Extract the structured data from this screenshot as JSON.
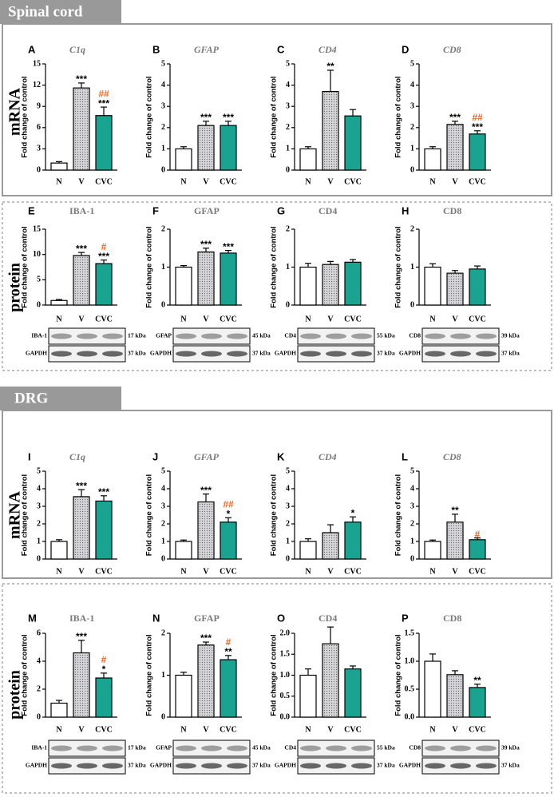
{
  "sections": [
    {
      "title": "Spinal cord",
      "rows": [
        "mRNA",
        "protein"
      ]
    },
    {
      "title": "DRG",
      "rows": [
        "mRNA",
        "protein"
      ]
    }
  ],
  "chart_data": [
    {
      "type": "bar",
      "panel": "A",
      "title": "C1q",
      "title_style": "italic",
      "ylabel": "Fold change of control",
      "categories": [
        "N",
        "V",
        "CVC"
      ],
      "values": [
        1.0,
        11.6,
        7.7
      ],
      "errors": [
        0.2,
        0.7,
        1.2
      ],
      "colors": [
        "#ffffff",
        "#d4d4d8",
        "#1aa391"
      ],
      "dotted_category": "V",
      "ylim": [
        0,
        15
      ],
      "yticks": [
        0,
        3,
        6,
        9,
        12,
        15
      ],
      "annotations": [
        {
          "text": "***",
          "category": "V",
          "color": "#000000"
        },
        {
          "text": "***",
          "category": "CVC",
          "color": "#000000"
        },
        {
          "text": "##",
          "category": "CVC",
          "color": "#f26522"
        }
      ]
    },
    {
      "type": "bar",
      "panel": "B",
      "title": "GFAP",
      "title_style": "italic",
      "ylabel": "Fold change of control",
      "categories": [
        "N",
        "V",
        "CVC"
      ],
      "values": [
        1.0,
        2.1,
        2.1
      ],
      "errors": [
        0.1,
        0.2,
        0.2
      ],
      "colors": [
        "#ffffff",
        "#d4d4d8",
        "#1aa391"
      ],
      "dotted_category": "V",
      "ylim": [
        0,
        5
      ],
      "yticks": [
        0,
        1,
        2,
        3,
        4,
        5
      ],
      "annotations": [
        {
          "text": "***",
          "category": "V",
          "color": "#000000"
        },
        {
          "text": "***",
          "category": "CVC",
          "color": "#000000"
        }
      ]
    },
    {
      "type": "bar",
      "panel": "C",
      "title": "CD4",
      "title_style": "italic",
      "ylabel": "Fold change of control",
      "categories": [
        "N",
        "V",
        "CVC"
      ],
      "values": [
        1.0,
        3.7,
        2.55
      ],
      "errors": [
        0.1,
        1.0,
        0.3
      ],
      "colors": [
        "#ffffff",
        "#d4d4d8",
        "#1aa391"
      ],
      "dotted_category": "V",
      "ylim": [
        0,
        5
      ],
      "yticks": [
        0,
        1,
        2,
        3,
        4,
        5
      ],
      "annotations": [
        {
          "text": "**",
          "category": "V",
          "color": "#000000"
        }
      ]
    },
    {
      "type": "bar",
      "panel": "D",
      "title": "CD8",
      "title_style": "italic",
      "ylabel": "Fold change of control",
      "categories": [
        "N",
        "V",
        "CVC"
      ],
      "values": [
        1.0,
        2.15,
        1.7
      ],
      "errors": [
        0.1,
        0.15,
        0.15
      ],
      "colors": [
        "#ffffff",
        "#d4d4d8",
        "#1aa391"
      ],
      "dotted_category": "V",
      "ylim": [
        0,
        5
      ],
      "yticks": [
        0,
        1,
        2,
        3,
        4,
        5
      ],
      "annotations": [
        {
          "text": "***",
          "category": "V",
          "color": "#000000"
        },
        {
          "text": "***",
          "category": "CVC",
          "color": "#000000"
        },
        {
          "text": "##",
          "category": "CVC",
          "color": "#f26522"
        }
      ]
    },
    {
      "type": "bar",
      "panel": "E",
      "title": "IBA-1",
      "title_style": "normal",
      "ylabel": "Fold change of control",
      "categories": [
        "N",
        "V",
        "CVC"
      ],
      "values": [
        0.9,
        9.8,
        8.2
      ],
      "errors": [
        0.2,
        0.6,
        0.7
      ],
      "colors": [
        "#ffffff",
        "#d4d4d8",
        "#1aa391"
      ],
      "dotted_category": "V",
      "ylim": [
        0,
        15
      ],
      "yticks": [
        0,
        5,
        10,
        15
      ],
      "annotations": [
        {
          "text": "***",
          "category": "V",
          "color": "#000000"
        },
        {
          "text": "***",
          "category": "CVC",
          "color": "#000000"
        },
        {
          "text": "#",
          "category": "CVC",
          "color": "#f26522"
        }
      ],
      "blot": {
        "target": "IBA-1",
        "target_size": "17 kDa",
        "control": "GAPDH",
        "control_size": "37 kDa"
      }
    },
    {
      "type": "bar",
      "panel": "F",
      "title": "GFAP",
      "title_style": "normal",
      "ylabel": "Fold change of control",
      "categories": [
        "N",
        "V",
        "CVC"
      ],
      "values": [
        1.0,
        1.4,
        1.37
      ],
      "errors": [
        0.04,
        0.1,
        0.07
      ],
      "colors": [
        "#ffffff",
        "#d4d4d8",
        "#1aa391"
      ],
      "dotted_category": "V",
      "ylim": [
        0,
        2
      ],
      "yticks": [
        0,
        1,
        2
      ],
      "annotations": [
        {
          "text": "***",
          "category": "V",
          "color": "#000000"
        },
        {
          "text": "***",
          "category": "CVC",
          "color": "#000000"
        }
      ],
      "blot": {
        "target": "GFAP",
        "target_size": "45 kDa",
        "control": "GAPDH",
        "control_size": "37 kDa"
      }
    },
    {
      "type": "bar",
      "panel": "G",
      "title": "CD4",
      "title_style": "normal",
      "ylabel": "Fold change of control",
      "categories": [
        "N",
        "V",
        "CVC"
      ],
      "values": [
        1.0,
        1.07,
        1.13
      ],
      "errors": [
        0.1,
        0.08,
        0.07
      ],
      "colors": [
        "#ffffff",
        "#d4d4d8",
        "#1aa391"
      ],
      "dotted_category": "V",
      "ylim": [
        0,
        2
      ],
      "yticks": [
        0,
        1,
        2
      ],
      "annotations": [],
      "blot": {
        "target": "CD4",
        "target_size": "55 kDa",
        "control": "GAPDH",
        "control_size": "37 kDa"
      }
    },
    {
      "type": "bar",
      "panel": "H",
      "title": "CD8",
      "title_style": "normal",
      "ylabel": "Fold change of control",
      "categories": [
        "N",
        "V",
        "CVC"
      ],
      "values": [
        1.0,
        0.84,
        0.95
      ],
      "errors": [
        0.09,
        0.07,
        0.08
      ],
      "colors": [
        "#ffffff",
        "#d4d4d8",
        "#1aa391"
      ],
      "dotted_category": "V",
      "ylim": [
        0,
        2
      ],
      "yticks": [
        0,
        1,
        2
      ],
      "annotations": [],
      "blot": {
        "target": "CD8",
        "target_size": "39 kDa",
        "control": "GAPDH",
        "control_size": "37 kDa"
      }
    },
    {
      "type": "bar",
      "panel": "I",
      "title": "C1q",
      "title_style": "italic",
      "ylabel": "Fold change of control",
      "categories": [
        "N",
        "V",
        "CVC"
      ],
      "values": [
        1.0,
        3.55,
        3.3
      ],
      "errors": [
        0.1,
        0.4,
        0.3
      ],
      "colors": [
        "#ffffff",
        "#d4d4d8",
        "#1aa391"
      ],
      "dotted_category": "V",
      "ylim": [
        0,
        5
      ],
      "yticks": [
        0,
        1,
        2,
        3,
        4,
        5
      ],
      "annotations": [
        {
          "text": "***",
          "category": "V",
          "color": "#000000"
        },
        {
          "text": "***",
          "category": "CVC",
          "color": "#000000"
        }
      ]
    },
    {
      "type": "bar",
      "panel": "J",
      "title": "GFAP",
      "title_style": "italic",
      "ylabel": "Fold change of control",
      "categories": [
        "N",
        "V",
        "CVC"
      ],
      "values": [
        1.0,
        3.25,
        2.1
      ],
      "errors": [
        0.08,
        0.45,
        0.25
      ],
      "colors": [
        "#ffffff",
        "#d4d4d8",
        "#1aa391"
      ],
      "dotted_category": "V",
      "ylim": [
        0,
        5
      ],
      "yticks": [
        0,
        1,
        2,
        3,
        4,
        5
      ],
      "annotations": [
        {
          "text": "***",
          "category": "V",
          "color": "#000000"
        },
        {
          "text": "*",
          "category": "CVC",
          "color": "#000000"
        },
        {
          "text": "##",
          "category": "CVC",
          "color": "#f26522"
        }
      ]
    },
    {
      "type": "bar",
      "panel": "K",
      "title": "CD4",
      "title_style": "italic",
      "ylabel": "Fold change of control",
      "categories": [
        "N",
        "V",
        "CVC"
      ],
      "values": [
        1.0,
        1.5,
        2.1
      ],
      "errors": [
        0.15,
        0.45,
        0.3
      ],
      "colors": [
        "#ffffff",
        "#d4d4d8",
        "#1aa391"
      ],
      "dotted_category": "V",
      "ylim": [
        0,
        5
      ],
      "yticks": [
        0,
        1,
        2,
        3,
        4,
        5
      ],
      "annotations": [
        {
          "text": "*",
          "category": "CVC",
          "color": "#000000"
        }
      ]
    },
    {
      "type": "bar",
      "panel": "L",
      "title": "CD8",
      "title_style": "italic",
      "ylabel": "Fold change of control",
      "categories": [
        "N",
        "V",
        "CVC"
      ],
      "values": [
        1.0,
        2.1,
        1.1
      ],
      "errors": [
        0.08,
        0.45,
        0.1
      ],
      "colors": [
        "#ffffff",
        "#d4d4d8",
        "#1aa391"
      ],
      "dotted_category": "V",
      "ylim": [
        0,
        5
      ],
      "yticks": [
        0,
        1,
        2,
        3,
        4,
        5
      ],
      "annotations": [
        {
          "text": "**",
          "category": "V",
          "color": "#000000"
        },
        {
          "text": "#",
          "category": "CVC",
          "color": "#f26522"
        }
      ]
    },
    {
      "type": "bar",
      "panel": "M",
      "title": "IBA-1",
      "title_style": "normal",
      "ylabel": "Fold change of control",
      "categories": [
        "N",
        "V",
        "CVC"
      ],
      "values": [
        1.0,
        4.6,
        2.8
      ],
      "errors": [
        0.2,
        0.9,
        0.35
      ],
      "colors": [
        "#ffffff",
        "#d4d4d8",
        "#1aa391"
      ],
      "dotted_category": "V",
      "ylim": [
        0,
        6
      ],
      "yticks": [
        0,
        2,
        4,
        6
      ],
      "annotations": [
        {
          "text": "***",
          "category": "V",
          "color": "#000000"
        },
        {
          "text": "*",
          "category": "CVC",
          "color": "#000000"
        },
        {
          "text": "#",
          "category": "CVC",
          "color": "#f26522"
        }
      ],
      "blot": {
        "target": "IBA-1",
        "target_size": "17 kDa",
        "control": "GAPDH",
        "control_size": "37 kDa"
      }
    },
    {
      "type": "bar",
      "panel": "N",
      "title": "GFAP",
      "title_style": "normal",
      "ylabel": "Fold change of control",
      "categories": [
        "N",
        "V",
        "CVC"
      ],
      "values": [
        1.0,
        1.72,
        1.37
      ],
      "errors": [
        0.07,
        0.07,
        0.1
      ],
      "colors": [
        "#ffffff",
        "#d4d4d8",
        "#1aa391"
      ],
      "dotted_category": "V",
      "ylim": [
        0,
        2
      ],
      "yticks": [
        0,
        1,
        2
      ],
      "annotations": [
        {
          "text": "***",
          "category": "V",
          "color": "#000000"
        },
        {
          "text": "**",
          "category": "CVC",
          "color": "#000000"
        },
        {
          "text": "#",
          "category": "CVC",
          "color": "#f26522"
        }
      ],
      "blot": {
        "target": "GFAP",
        "target_size": "45 kDa",
        "control": "GAPDH",
        "control_size": "37 kDa"
      }
    },
    {
      "type": "bar",
      "panel": "O",
      "title": "CD4",
      "title_style": "normal",
      "ylabel": "Fold change of control",
      "categories": [
        "N",
        "V",
        "CVC"
      ],
      "values": [
        1.0,
        1.75,
        1.15
      ],
      "errors": [
        0.15,
        0.4,
        0.07
      ],
      "colors": [
        "#ffffff",
        "#d4d4d8",
        "#1aa391"
      ],
      "dotted_category": "V",
      "ylim": [
        0,
        2
      ],
      "yticks": [
        {
          "value": 0,
          "label": "0.0"
        },
        {
          "value": 0.5,
          "label": "0.5"
        },
        {
          "value": 1,
          "label": "1.0"
        },
        {
          "value": 1.5,
          "label": "1.5"
        },
        {
          "value": 2,
          "label": "2.0"
        }
      ],
      "annotations": [],
      "blot": {
        "target": "CD4",
        "target_size": "55 kDa",
        "control": "GAPDH",
        "control_size": "37 kDa"
      }
    },
    {
      "type": "bar",
      "panel": "P",
      "title": "CD8",
      "title_style": "normal",
      "ylabel": "Fold change of control",
      "categories": [
        "N",
        "V",
        "CVC"
      ],
      "values": [
        1.0,
        0.76,
        0.53
      ],
      "errors": [
        0.13,
        0.07,
        0.06
      ],
      "colors": [
        "#ffffff",
        "#d4d4d8",
        "#1aa391"
      ],
      "dotted_category": "V",
      "ylim": [
        0,
        1.5
      ],
      "yticks": [
        {
          "value": 0,
          "label": "0.0"
        },
        {
          "value": 0.5,
          "label": "0.5"
        },
        {
          "value": 1,
          "label": "1.0"
        },
        {
          "value": 1.5,
          "label": "1.5"
        }
      ],
      "annotations": [
        {
          "text": "**",
          "category": "CVC",
          "color": "#000000"
        }
      ],
      "blot": {
        "target": "CD8",
        "target_size": "39 kDa",
        "control": "GAPDH",
        "control_size": "37 kDa"
      }
    }
  ]
}
